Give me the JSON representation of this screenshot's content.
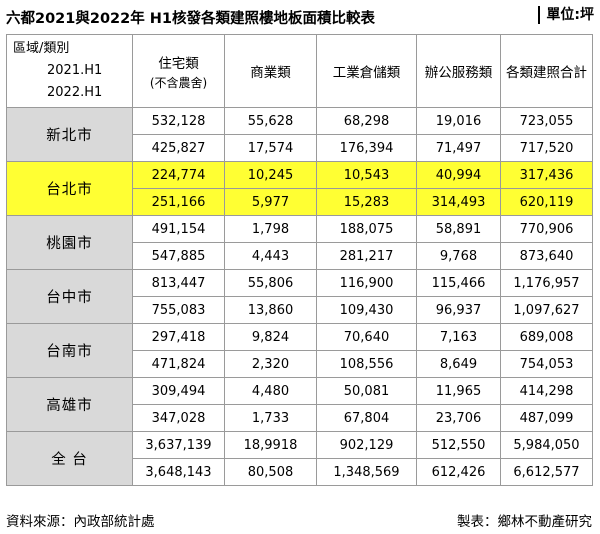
{
  "title": "六都2021與2022年 H1核發各類建照樓地板面積比較表",
  "unit": "單位:坪",
  "header": {
    "corner": [
      "區域/類別",
      "2021.H1",
      "2022.H1"
    ],
    "col1": "住宅類",
    "col1_sub": "(不含農舍)",
    "col2": "商業類",
    "col3": "工業倉儲類",
    "col4": "辦公服務類",
    "col5": "各類建照合計"
  },
  "rows": [
    {
      "region": "新北市",
      "r2021": [
        "532,128",
        "55,628",
        "68,298",
        "19,016",
        "723,055"
      ],
      "r2022": [
        "425,827",
        "17,574",
        "176,394",
        "71,497",
        "717,520"
      ]
    },
    {
      "region": "台北市",
      "r2021": [
        "224,774",
        "10,245",
        "10,543",
        "40,994",
        "317,436"
      ],
      "r2022": [
        "251,166",
        "5,977",
        "15,283",
        "314,493",
        "620,119"
      ]
    },
    {
      "region": "桃園市",
      "r2021": [
        "491,154",
        "1,798",
        "188,075",
        "58,891",
        "770,906"
      ],
      "r2022": [
        "547,885",
        "4,443",
        "281,217",
        "9,768",
        "873,640"
      ]
    },
    {
      "region": "台中市",
      "r2021": [
        "813,447",
        "55,806",
        "116,900",
        "115,466",
        "1,176,957"
      ],
      "r2022": [
        "755,083",
        "13,860",
        "109,430",
        "96,937",
        "1,097,627"
      ]
    },
    {
      "region": "台南市",
      "r2021": [
        "297,418",
        "9,824",
        "70,640",
        "7,163",
        "689,008"
      ],
      "r2022": [
        "471,824",
        "2,320",
        "108,556",
        "8,649",
        "754,053"
      ]
    },
    {
      "region": "高雄市",
      "r2021": [
        "309,494",
        "4,480",
        "50,081",
        "11,965",
        "414,298"
      ],
      "r2022": [
        "347,028",
        "1,733",
        "67,804",
        "23,706",
        "487,099"
      ]
    },
    {
      "region": "全 台",
      "r2021": [
        "3,637,139",
        "18,9918",
        "902,129",
        "512,550",
        "5,984,050"
      ],
      "r2022": [
        "3,648,143",
        "80,508",
        "1,348,569",
        "612,426",
        "6,612,577"
      ]
    }
  ],
  "highlight_color": "#ffff33",
  "region_bg": "#d9d9d9",
  "footer": {
    "source": "資料來源：內政部統計處",
    "maker": "製表：鄉林不動產研究"
  }
}
